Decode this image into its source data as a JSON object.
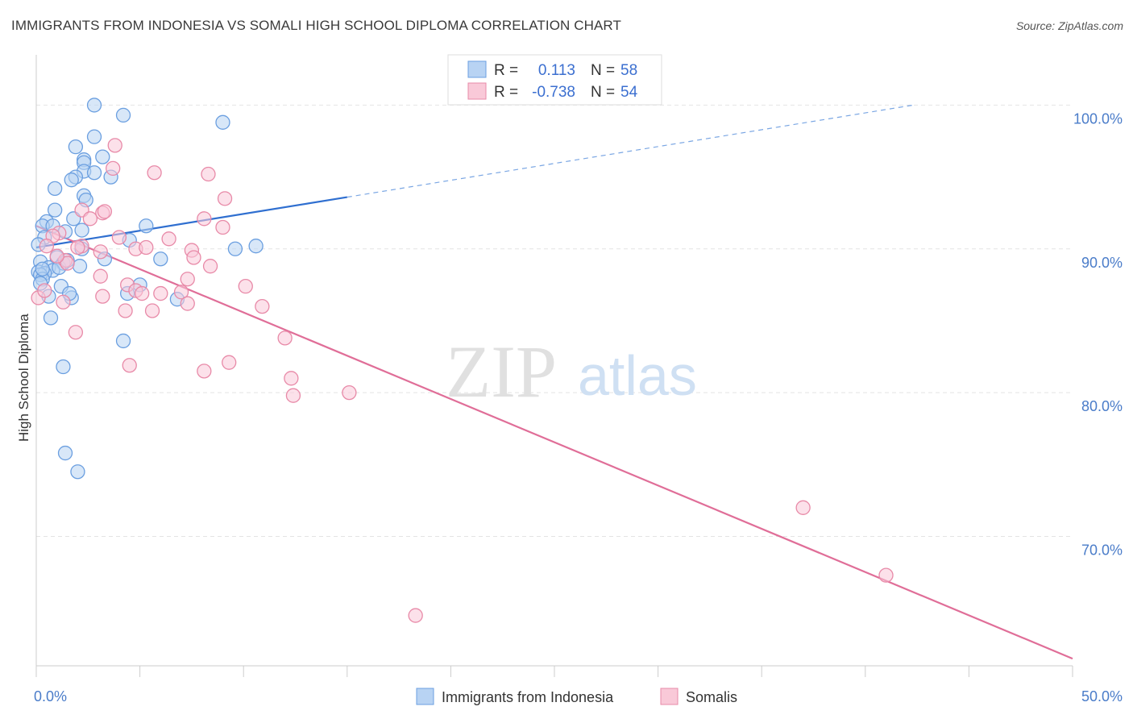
{
  "title": "IMMIGRANTS FROM INDONESIA VS SOMALI HIGH SCHOOL DIPLOMA CORRELATION CHART",
  "source": "Source: ZipAtlas.com",
  "watermark": {
    "part1": "ZIP",
    "part2": "atlas"
  },
  "legend": {
    "r_label": "R =",
    "n_label": "N =",
    "rows": [
      {
        "r": "0.113",
        "n": "58",
        "color": "#a9c8ef"
      },
      {
        "r": "-0.738",
        "n": "54",
        "color": "#f6b8cc"
      }
    ]
  },
  "chart_data": {
    "type": "scatter",
    "title": "IMMIGRANTS FROM INDONESIA VS SOMALI HIGH SCHOOL DIPLOMA CORRELATION CHART",
    "xlabel": "",
    "ylabel": "High School Diploma",
    "xlim": [
      0,
      50
    ],
    "ylim": [
      61,
      103.5
    ],
    "x_tick_labels": {
      "left": "0.0%",
      "right": "50.0%"
    },
    "y_ticks": [
      {
        "value": 100,
        "label": "100.0%"
      },
      {
        "value": 90,
        "label": "90.0%"
      },
      {
        "value": 80,
        "label": "80.0%"
      },
      {
        "value": 70,
        "label": "70.0%"
      }
    ],
    "grid": true,
    "series": [
      {
        "name": "Immigrants from Indonesia",
        "color": "#6b9fe0",
        "fill": "#b8d3f3",
        "trend": {
          "x0": 0,
          "y0": 90.1,
          "x1": 15,
          "y1": 93.6,
          "dash_to_x": 42.3,
          "dash_to_y": 100.0
        },
        "points": [
          [
            2.8,
            100.0
          ],
          [
            4.2,
            99.3
          ],
          [
            9.0,
            98.8
          ],
          [
            2.8,
            97.8
          ],
          [
            1.9,
            97.1
          ],
          [
            3.2,
            96.4
          ],
          [
            2.3,
            96.2
          ],
          [
            2.3,
            96.0
          ],
          [
            2.3,
            95.4
          ],
          [
            2.8,
            95.3
          ],
          [
            1.9,
            95.0
          ],
          [
            3.6,
            95.0
          ],
          [
            1.7,
            94.8
          ],
          [
            0.9,
            94.2
          ],
          [
            2.3,
            93.7
          ],
          [
            2.4,
            93.4
          ],
          [
            0.9,
            92.7
          ],
          [
            1.8,
            92.1
          ],
          [
            0.5,
            91.9
          ],
          [
            0.3,
            91.6
          ],
          [
            0.8,
            91.6
          ],
          [
            2.2,
            91.3
          ],
          [
            1.4,
            91.2
          ],
          [
            5.3,
            91.6
          ],
          [
            0.4,
            90.8
          ],
          [
            4.5,
            90.6
          ],
          [
            0.1,
            90.3
          ],
          [
            2.2,
            90.0
          ],
          [
            9.6,
            90.0
          ],
          [
            10.6,
            90.2
          ],
          [
            1.0,
            89.4
          ],
          [
            6.0,
            89.3
          ],
          [
            0.2,
            89.1
          ],
          [
            1.3,
            89.0
          ],
          [
            3.3,
            89.3
          ],
          [
            0.6,
            88.7
          ],
          [
            0.8,
            88.5
          ],
          [
            1.1,
            88.7
          ],
          [
            2.1,
            88.8
          ],
          [
            0.1,
            88.4
          ],
          [
            0.4,
            88.3
          ],
          [
            0.2,
            88.2
          ],
          [
            0.3,
            87.9
          ],
          [
            0.2,
            87.6
          ],
          [
            1.2,
            87.4
          ],
          [
            5.0,
            87.5
          ],
          [
            1.7,
            86.6
          ],
          [
            4.4,
            86.9
          ],
          [
            6.8,
            86.5
          ],
          [
            0.6,
            86.7
          ],
          [
            1.6,
            86.9
          ],
          [
            0.7,
            85.2
          ],
          [
            4.2,
            83.6
          ],
          [
            1.3,
            81.8
          ],
          [
            1.4,
            75.8
          ],
          [
            2.0,
            74.5
          ],
          [
            0.3,
            88.6
          ],
          [
            1.5,
            89.2
          ]
        ]
      },
      {
        "name": "Somalis",
        "color": "#e88aa8",
        "fill": "#f9c9d8",
        "trend": {
          "x0": 0,
          "y0": 91.6,
          "x1": 50,
          "y1": 61.5
        },
        "points": [
          [
            3.8,
            97.2
          ],
          [
            3.7,
            95.6
          ],
          [
            5.7,
            95.3
          ],
          [
            8.3,
            95.2
          ],
          [
            9.1,
            93.5
          ],
          [
            2.2,
            92.7
          ],
          [
            3.2,
            92.5
          ],
          [
            3.3,
            92.6
          ],
          [
            2.6,
            92.1
          ],
          [
            8.1,
            92.1
          ],
          [
            9.0,
            91.5
          ],
          [
            1.1,
            91.1
          ],
          [
            0.8,
            90.9
          ],
          [
            4.0,
            90.8
          ],
          [
            6.4,
            90.7
          ],
          [
            0.5,
            90.2
          ],
          [
            2.2,
            90.2
          ],
          [
            3.1,
            89.8
          ],
          [
            4.8,
            90.0
          ],
          [
            7.5,
            89.9
          ],
          [
            7.6,
            89.4
          ],
          [
            1.4,
            89.2
          ],
          [
            1.5,
            89.0
          ],
          [
            8.4,
            88.8
          ],
          [
            3.1,
            88.1
          ],
          [
            4.4,
            87.5
          ],
          [
            7.3,
            87.9
          ],
          [
            10.1,
            87.4
          ],
          [
            4.8,
            87.1
          ],
          [
            5.1,
            86.9
          ],
          [
            6.0,
            86.9
          ],
          [
            7.0,
            87.0
          ],
          [
            3.2,
            86.7
          ],
          [
            1.3,
            86.3
          ],
          [
            7.3,
            86.2
          ],
          [
            10.9,
            86.0
          ],
          [
            4.3,
            85.7
          ],
          [
            5.6,
            85.7
          ],
          [
            0.1,
            86.6
          ],
          [
            0.4,
            87.1
          ],
          [
            1.9,
            84.2
          ],
          [
            12.0,
            83.8
          ],
          [
            4.5,
            81.9
          ],
          [
            9.3,
            82.1
          ],
          [
            8.1,
            81.5
          ],
          [
            12.3,
            81.0
          ],
          [
            12.4,
            79.8
          ],
          [
            15.1,
            80.0
          ],
          [
            37.0,
            72.0
          ],
          [
            41.0,
            67.3
          ],
          [
            18.3,
            64.5
          ],
          [
            2.0,
            90.1
          ],
          [
            5.3,
            90.1
          ],
          [
            1.0,
            89.5
          ]
        ]
      }
    ]
  },
  "bottom_legend": [
    {
      "label": "Immigrants from Indonesia",
      "color": "#b8d3f3",
      "stroke": "#6b9fe0"
    },
    {
      "label": "Somalis",
      "color": "#f9c9d8",
      "stroke": "#e88aa8"
    }
  ]
}
